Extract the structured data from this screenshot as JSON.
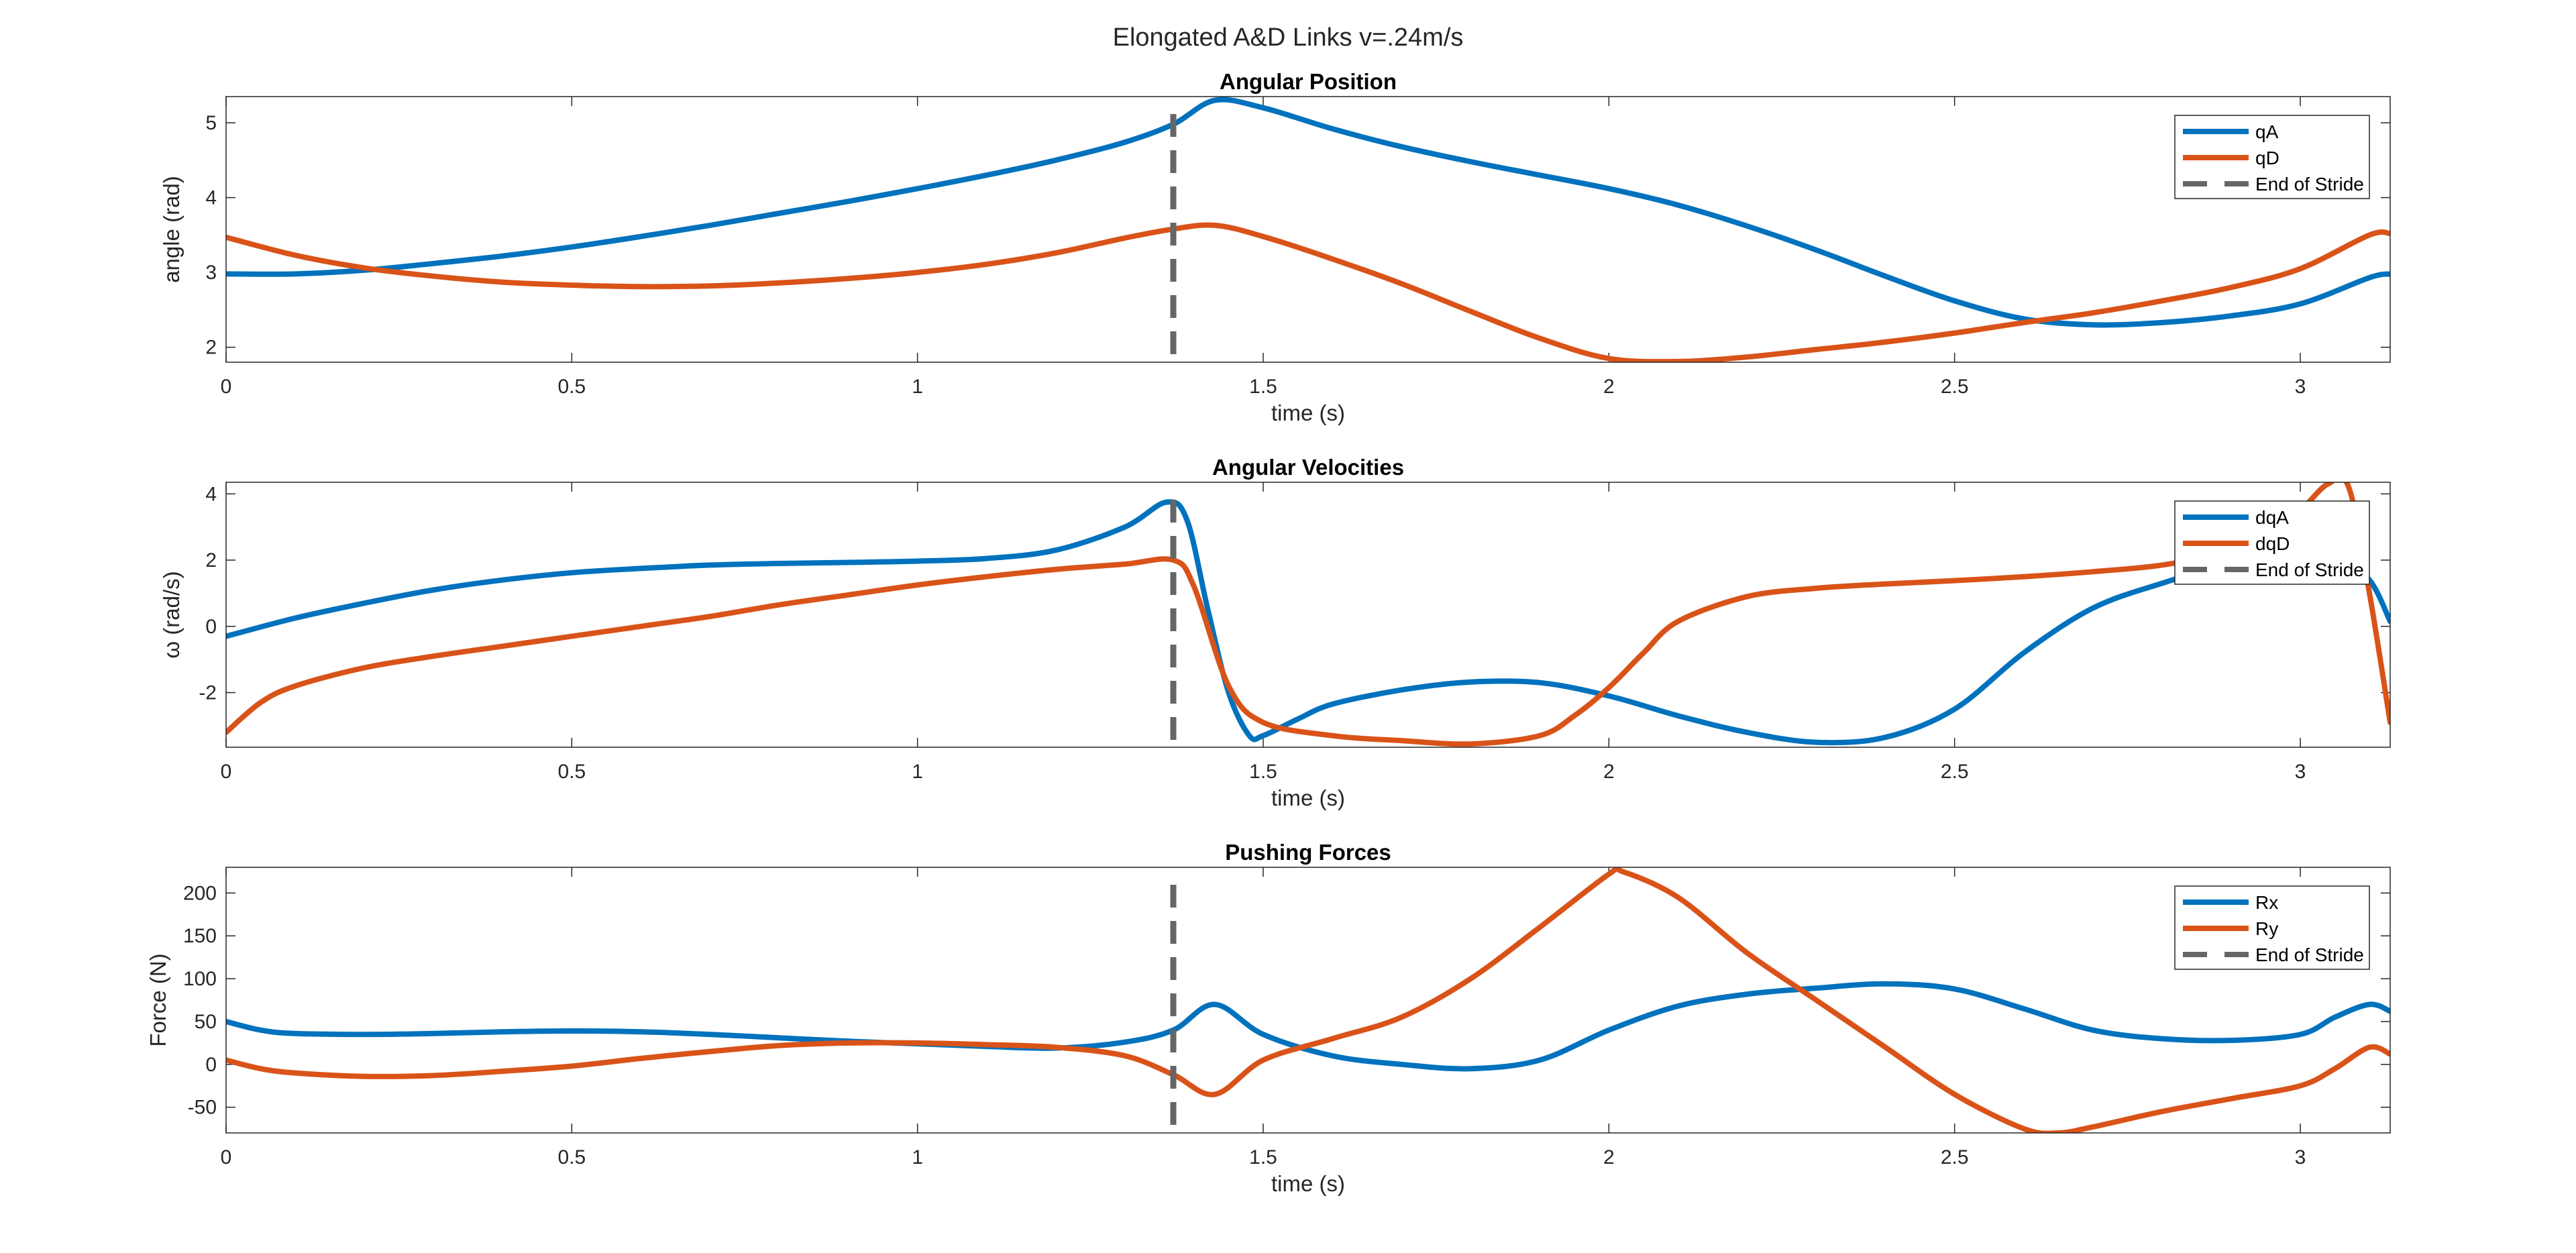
{
  "figure": {
    "title": "Elongated A&D Links v=.24m/s"
  },
  "chart_data": [
    {
      "type": "line",
      "title": "Angular Position",
      "xlabel": "time (s)",
      "ylabel": "angle (rad)",
      "xlim": [
        0,
        3.13
      ],
      "ylim": [
        1.8,
        5.35
      ],
      "xticks": [
        0,
        0.5,
        1,
        1.5,
        2,
        2.5,
        3
      ],
      "xtick_labels": [
        "0",
        "0.5",
        "1",
        "1.5",
        "2",
        "2.5",
        "3"
      ],
      "yticks": [
        2,
        3,
        4,
        5
      ],
      "ytick_labels": [
        "2",
        "3",
        "4",
        "5"
      ],
      "legend_position": "top-right",
      "end_of_stride": 1.37,
      "series": [
        {
          "name": "qA",
          "color": "#0072BD",
          "x": [
            0,
            0.1,
            0.2,
            0.3,
            0.4,
            0.5,
            0.6,
            0.7,
            0.8,
            0.9,
            1.0,
            1.1,
            1.2,
            1.3,
            1.37,
            1.43,
            1.5,
            1.6,
            1.7,
            1.8,
            1.9,
            2.0,
            2.1,
            2.2,
            2.3,
            2.4,
            2.5,
            2.6,
            2.7,
            2.8,
            2.9,
            3.0,
            3.1,
            3.13
          ],
          "y": [
            2.98,
            2.98,
            3.03,
            3.12,
            3.22,
            3.34,
            3.48,
            3.63,
            3.79,
            3.95,
            4.12,
            4.3,
            4.5,
            4.74,
            4.98,
            5.3,
            5.2,
            4.92,
            4.68,
            4.48,
            4.3,
            4.12,
            3.9,
            3.62,
            3.3,
            2.95,
            2.62,
            2.38,
            2.3,
            2.33,
            2.42,
            2.58,
            2.93,
            2.98
          ]
        },
        {
          "name": "qD",
          "color": "#D95319",
          "x": [
            0,
            0.1,
            0.2,
            0.3,
            0.4,
            0.5,
            0.6,
            0.7,
            0.8,
            0.9,
            1.0,
            1.1,
            1.2,
            1.3,
            1.37,
            1.43,
            1.5,
            1.6,
            1.7,
            1.8,
            1.9,
            2.0,
            2.1,
            2.2,
            2.3,
            2.4,
            2.5,
            2.6,
            2.7,
            2.8,
            2.9,
            3.0,
            3.1,
            3.13
          ],
          "y": [
            3.47,
            3.23,
            3.06,
            2.95,
            2.87,
            2.83,
            2.81,
            2.82,
            2.86,
            2.92,
            3.0,
            3.11,
            3.26,
            3.46,
            3.58,
            3.63,
            3.48,
            3.18,
            2.85,
            2.48,
            2.12,
            1.85,
            1.81,
            1.87,
            1.97,
            2.07,
            2.19,
            2.33,
            2.46,
            2.62,
            2.8,
            3.05,
            3.5,
            3.52
          ]
        },
        {
          "name": "End of Stride",
          "color": "#666666",
          "dashed": true
        }
      ]
    },
    {
      "type": "line",
      "title": "Angular Velocities",
      "xlabel": "time (s)",
      "ylabel": "ω (rad/s)",
      "xlim": [
        0,
        3.13
      ],
      "ylim": [
        -3.65,
        4.35
      ],
      "xticks": [
        0,
        0.5,
        1,
        1.5,
        2,
        2.5,
        3
      ],
      "xtick_labels": [
        "0",
        "0.5",
        "1",
        "1.5",
        "2",
        "2.5",
        "3"
      ],
      "yticks": [
        -2,
        0,
        2,
        4
      ],
      "ytick_labels": [
        "-2",
        "0",
        "2",
        "4"
      ],
      "legend_position": "top-right",
      "end_of_stride": 1.37,
      "series": [
        {
          "name": "dqA",
          "color": "#0072BD",
          "x": [
            0,
            0.1,
            0.2,
            0.3,
            0.4,
            0.5,
            0.6,
            0.7,
            0.8,
            0.9,
            1.0,
            1.1,
            1.2,
            1.3,
            1.36,
            1.39,
            1.42,
            1.45,
            1.48,
            1.5,
            1.55,
            1.6,
            1.7,
            1.8,
            1.9,
            2.0,
            2.1,
            2.2,
            2.3,
            2.4,
            2.5,
            2.6,
            2.7,
            2.8,
            2.9,
            3.0,
            3.05,
            3.1,
            3.13
          ],
          "y": [
            -0.3,
            0.25,
            0.7,
            1.1,
            1.4,
            1.62,
            1.75,
            1.85,
            1.9,
            1.93,
            1.97,
            2.05,
            2.3,
            3.0,
            3.75,
            3.2,
            0.5,
            -2.0,
            -3.3,
            -3.3,
            -2.8,
            -2.35,
            -1.92,
            -1.68,
            -1.7,
            -2.1,
            -2.7,
            -3.2,
            -3.5,
            -3.35,
            -2.5,
            -0.8,
            0.55,
            1.3,
            1.9,
            2.3,
            2.2,
            1.4,
            0.15
          ]
        },
        {
          "name": "dqD",
          "color": "#D95319",
          "x": [
            0,
            0.05,
            0.1,
            0.2,
            0.3,
            0.4,
            0.5,
            0.6,
            0.7,
            0.8,
            0.9,
            1.0,
            1.1,
            1.2,
            1.3,
            1.37,
            1.4,
            1.45,
            1.5,
            1.6,
            1.7,
            1.8,
            1.9,
            1.95,
            2.0,
            2.05,
            2.1,
            2.2,
            2.3,
            2.4,
            2.5,
            2.6,
            2.7,
            2.8,
            2.9,
            2.95,
            3.0,
            3.04,
            3.07,
            3.1,
            3.13
          ],
          "y": [
            -3.2,
            -2.3,
            -1.8,
            -1.25,
            -0.9,
            -0.6,
            -0.3,
            0.0,
            0.3,
            0.65,
            0.95,
            1.25,
            1.5,
            1.72,
            1.88,
            2.0,
            1.2,
            -1.8,
            -2.9,
            -3.3,
            -3.45,
            -3.55,
            -3.3,
            -2.7,
            -1.85,
            -0.8,
            0.15,
            0.9,
            1.15,
            1.28,
            1.38,
            1.5,
            1.65,
            1.85,
            2.25,
            2.7,
            3.5,
            4.3,
            4.2,
            1.0,
            -2.9
          ]
        },
        {
          "name": "End of Stride",
          "color": "#666666",
          "dashed": true
        }
      ]
    },
    {
      "type": "line",
      "title": "Pushing Forces",
      "xlabel": "time (s)",
      "ylabel": "Force (N)",
      "xlim": [
        0,
        3.13
      ],
      "ylim": [
        -80,
        230
      ],
      "xticks": [
        0,
        0.5,
        1,
        1.5,
        2,
        2.5,
        3
      ],
      "xtick_labels": [
        "0",
        "0.5",
        "1",
        "1.5",
        "2",
        "2.5",
        "3"
      ],
      "yticks": [
        -50,
        0,
        50,
        100,
        150,
        200
      ],
      "ytick_labels": [
        "-50",
        "0",
        "50",
        "100",
        "150",
        "200"
      ],
      "legend_position": "top-right",
      "end_of_stride": 1.37,
      "series": [
        {
          "name": "Rx",
          "color": "#0072BD",
          "x": [
            0,
            0.05,
            0.1,
            0.2,
            0.3,
            0.4,
            0.5,
            0.6,
            0.7,
            0.8,
            0.9,
            1.0,
            1.1,
            1.2,
            1.3,
            1.37,
            1.43,
            1.5,
            1.6,
            1.7,
            1.8,
            1.9,
            2.0,
            2.1,
            2.2,
            2.3,
            2.4,
            2.5,
            2.6,
            2.7,
            2.8,
            2.9,
            3.0,
            3.05,
            3.1,
            3.13
          ],
          "y": [
            50,
            40,
            36,
            35,
            36,
            38,
            39,
            38,
            35,
            31,
            27,
            24,
            21,
            19,
            26,
            40,
            70,
            35,
            10,
            0,
            -5,
            5,
            40,
            68,
            82,
            89,
            94,
            88,
            65,
            40,
            30,
            28,
            35,
            55,
            70,
            62
          ]
        },
        {
          "name": "Ry",
          "color": "#D95319",
          "x": [
            0,
            0.05,
            0.1,
            0.2,
            0.3,
            0.4,
            0.5,
            0.6,
            0.7,
            0.8,
            0.9,
            1.0,
            1.1,
            1.2,
            1.3,
            1.37,
            1.43,
            1.5,
            1.6,
            1.7,
            1.8,
            1.9,
            2.0,
            2.02,
            2.1,
            2.2,
            2.3,
            2.4,
            2.5,
            2.6,
            2.65,
            2.7,
            2.8,
            2.9,
            3.0,
            3.05,
            3.1,
            3.13
          ],
          "y": [
            5,
            -5,
            -10,
            -14,
            -13,
            -8,
            -2,
            7,
            15,
            22,
            25,
            25,
            23,
            20,
            10,
            -12,
            -35,
            5,
            30,
            55,
            100,
            160,
            222,
            225,
            195,
            130,
            75,
            20,
            -35,
            -75,
            -80,
            -73,
            -55,
            -40,
            -25,
            -5,
            20,
            12
          ]
        },
        {
          "name": "End of Stride",
          "color": "#666666",
          "dashed": true
        }
      ]
    }
  ]
}
